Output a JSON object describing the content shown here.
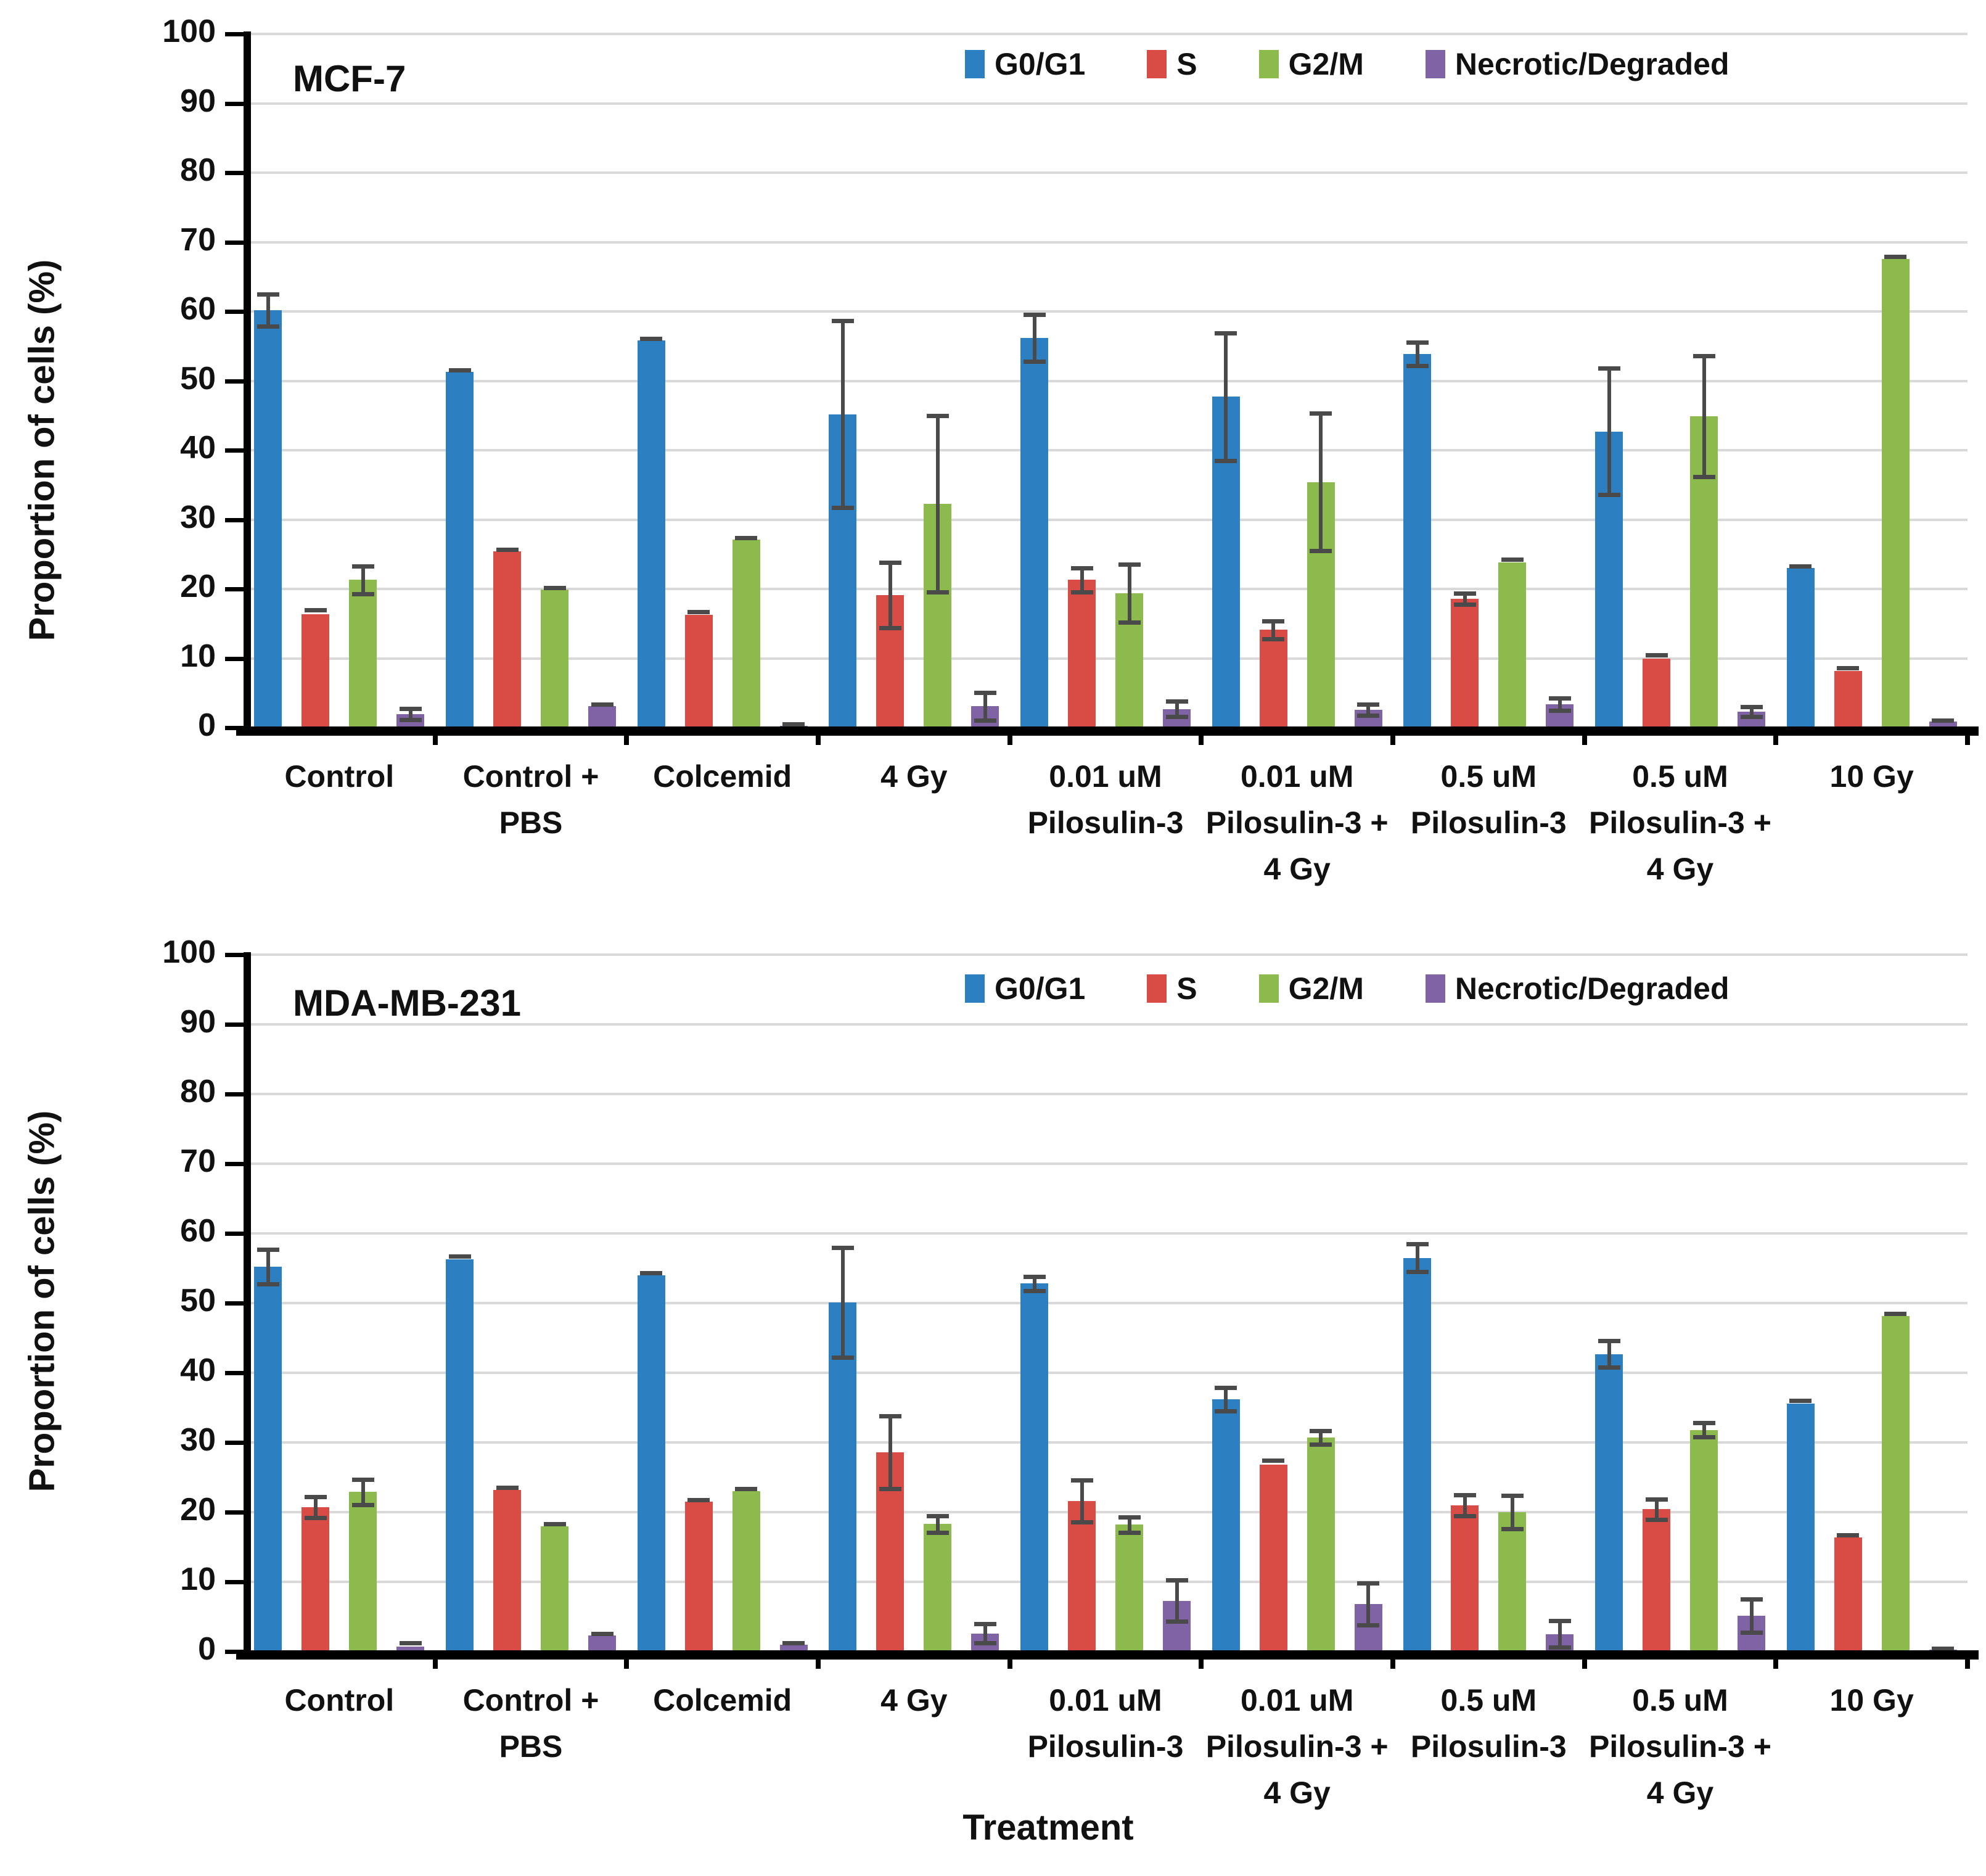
{
  "figure": {
    "y_axis_title": "Proportion of cells (%)",
    "x_axis_title": "Treatment"
  },
  "chart_data": [
    {
      "type": "bar",
      "title": "MCF-7",
      "ylabel": "Proportion of cells (%)",
      "xlabel": "",
      "ylim": [
        0,
        100
      ],
      "ytick_step": 10,
      "grid": true,
      "legend_position": "top-inside",
      "error_bars": true,
      "categories": [
        "Control",
        "Control +\nPBS",
        "Colcemid",
        "4 Gy",
        "0.01 uM\nPilosulin-3",
        "0.01 uM\nPilosulin-3 +\n4 Gy",
        "0.5 uM\nPilosulin-3",
        "0.5 uM\nPilosulin-3 +\n4 Gy",
        "10 Gy"
      ],
      "series": [
        {
          "name": "G0/G1",
          "color": "#2c7fc0",
          "values": [
            60.2,
            51.3,
            55.8,
            45.2,
            56.2,
            47.7,
            53.9,
            42.7,
            23.0
          ],
          "errors": [
            2.3,
            0.3,
            0.3,
            13.5,
            3.4,
            9.2,
            1.7,
            9.1,
            0.3
          ]
        },
        {
          "name": "S",
          "color": "#d94b45",
          "values": [
            16.4,
            25.4,
            16.3,
            19.1,
            21.3,
            14.1,
            18.6,
            10.0,
            8.2
          ],
          "errors": [
            0.6,
            0.3,
            0.4,
            4.7,
            1.7,
            1.3,
            0.8,
            0.5,
            0.4
          ]
        },
        {
          "name": "G2/M",
          "color": "#8dba4d",
          "values": [
            21.3,
            19.9,
            27.1,
            32.3,
            19.4,
            35.4,
            23.8,
            44.9,
            67.6
          ],
          "errors": [
            2.0,
            0.3,
            0.3,
            12.7,
            4.2,
            9.9,
            0.5,
            8.7,
            0.3
          ]
        },
        {
          "name": "Necrotic/Degraded",
          "color": "#7f63a5",
          "values": [
            2.0,
            3.1,
            0.3,
            3.1,
            2.7,
            2.6,
            3.4,
            2.3,
            0.9
          ],
          "errors": [
            0.8,
            0.3,
            0.2,
            2.0,
            1.1,
            0.8,
            0.9,
            0.7,
            0.2
          ]
        }
      ]
    },
    {
      "type": "bar",
      "title": "MDA-MB-231",
      "ylabel": "Proportion of cells (%)",
      "xlabel": "Treatment",
      "ylim": [
        0,
        100
      ],
      "ytick_step": 10,
      "grid": true,
      "legend_position": "top-inside",
      "error_bars": true,
      "categories": [
        "Control",
        "Control +\nPBS",
        "Colcemid",
        "4 Gy",
        "0.01 uM\nPilosulin-3",
        "0.01 uM\nPilosulin-3 +\n4 Gy",
        "0.5 uM\nPilosulin-3",
        "0.5 uM\nPilosulin-3 +\n4 Gy",
        "10 Gy"
      ],
      "series": [
        {
          "name": "G0/G1",
          "color": "#2c7fc0",
          "values": [
            55.2,
            56.3,
            54.0,
            50.1,
            52.8,
            36.2,
            56.5,
            42.7,
            35.6
          ],
          "errors": [
            2.5,
            0.4,
            0.3,
            7.9,
            1.0,
            1.7,
            2.0,
            1.9,
            0.4
          ]
        },
        {
          "name": "S",
          "color": "#d94b45",
          "values": [
            20.7,
            23.2,
            21.5,
            28.6,
            21.6,
            26.8,
            21.0,
            20.4,
            16.4
          ],
          "errors": [
            1.5,
            0.3,
            0.3,
            5.2,
            3.0,
            0.6,
            1.5,
            1.5,
            0.3
          ]
        },
        {
          "name": "G2/M",
          "color": "#8dba4d",
          "values": [
            22.9,
            18.0,
            23.0,
            18.3,
            18.2,
            30.7,
            20.0,
            31.8,
            48.1
          ],
          "errors": [
            1.8,
            0.3,
            0.4,
            1.2,
            1.1,
            1.0,
            2.4,
            1.0,
            0.4
          ]
        },
        {
          "name": "Necrotic/Degraded",
          "color": "#7f63a5",
          "values": [
            0.7,
            2.3,
            1.0,
            2.6,
            7.3,
            6.8,
            2.5,
            5.1,
            0.3
          ],
          "errors": [
            0.5,
            0.3,
            0.2,
            1.4,
            3.0,
            3.0,
            1.9,
            2.4,
            0.1
          ]
        }
      ]
    }
  ],
  "colors": {
    "g0g1": "#2c7fc0",
    "s": "#d94b45",
    "g2m": "#8dba4d",
    "necrotic": "#7f63a5",
    "error_bar": "#4a4a4a",
    "gridline": "#d9d9d9",
    "axis": "#000000"
  }
}
